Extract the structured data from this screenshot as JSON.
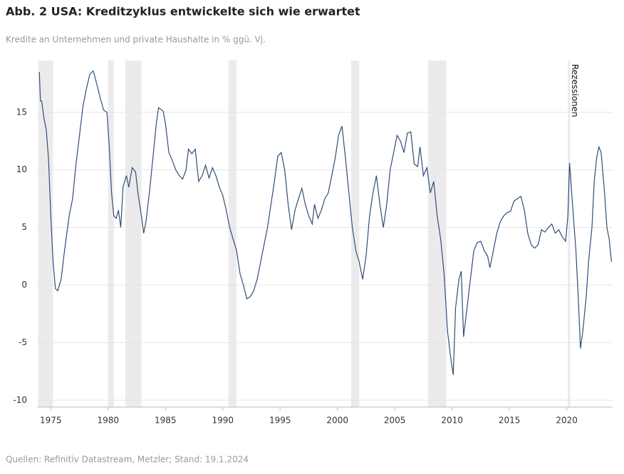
{
  "chart_data": {
    "type": "line",
    "title": "Abb. 2 USA: Kreditzyklus entwickelte sich wie erwartet",
    "subtitle": "Kredite an Unternehmen und private Haushalte in % ggü. Vj.",
    "source": "Quellen: Refinitiv Datastream, Metzler; Stand: 19.1.2024",
    "recession_label": "Rezessionen",
    "recession_color": "#ebebeb",
    "recessions": [
      [
        1973.9,
        1975.2
      ],
      [
        1980.0,
        1980.5
      ],
      [
        1981.5,
        1982.9
      ],
      [
        1990.5,
        1991.2
      ],
      [
        2001.2,
        2001.9
      ],
      [
        2007.9,
        2009.5
      ],
      [
        2020.1,
        2020.3
      ]
    ],
    "color": "#2f4f78",
    "x": [
      1974.0,
      1974.1,
      1974.2,
      1974.4,
      1974.6,
      1974.8,
      1975.0,
      1975.2,
      1975.4,
      1975.6,
      1975.9,
      1976.2,
      1976.6,
      1976.9,
      1977.2,
      1977.5,
      1977.8,
      1978.1,
      1978.4,
      1978.7,
      1979.0,
      1979.3,
      1979.6,
      1979.9,
      1980.1,
      1980.3,
      1980.5,
      1980.7,
      1980.9,
      1981.1,
      1981.3,
      1981.6,
      1981.8,
      1982.1,
      1982.4,
      1982.6,
      1982.9,
      1983.1,
      1983.3,
      1983.6,
      1983.9,
      1984.2,
      1984.4,
      1984.8,
      1985.0,
      1985.3,
      1985.6,
      1985.9,
      1986.2,
      1986.5,
      1986.8,
      1987.0,
      1987.3,
      1987.6,
      1987.9,
      1988.2,
      1988.5,
      1988.8,
      1989.1,
      1989.4,
      1989.7,
      1990.0,
      1990.3,
      1990.6,
      1990.9,
      1991.2,
      1991.5,
      1991.8,
      1992.1,
      1992.4,
      1992.7,
      1993.0,
      1993.3,
      1993.6,
      1993.9,
      1994.2,
      1994.5,
      1994.8,
      1995.1,
      1995.4,
      1995.7,
      1996.0,
      1996.3,
      1996.6,
      1996.9,
      1997.2,
      1997.5,
      1997.8,
      1998.0,
      1998.3,
      1998.6,
      1998.9,
      1999.2,
      1999.5,
      1999.8,
      2000.1,
      2000.4,
      2000.7,
      2001.0,
      2001.3,
      2001.6,
      2001.9,
      2002.2,
      2002.5,
      2002.8,
      2003.1,
      2003.4,
      2003.7,
      2004.0,
      2004.3,
      2004.6,
      2004.9,
      2005.2,
      2005.5,
      2005.8,
      2006.1,
      2006.4,
      2006.7,
      2007.0,
      2007.2,
      2007.5,
      2007.8,
      2008.1,
      2008.4,
      2008.7,
      2009.0,
      2009.3,
      2009.6,
      2009.9,
      2010.1,
      2010.3,
      2010.6,
      2010.8,
      2011.0,
      2011.3,
      2011.6,
      2011.9,
      2012.2,
      2012.5,
      2012.8,
      2013.1,
      2013.3,
      2013.6,
      2013.9,
      2014.2,
      2014.5,
      2014.8,
      2015.1,
      2015.4,
      2015.7,
      2016.0,
      2016.3,
      2016.6,
      2016.9,
      2017.2,
      2017.5,
      2017.8,
      2018.1,
      2018.4,
      2018.7,
      2019.0,
      2019.3,
      2019.6,
      2019.9,
      2020.1,
      2020.25,
      2020.5,
      2020.8,
      2021.0,
      2021.2,
      2021.4,
      2021.7,
      2021.9,
      2022.2,
      2022.4,
      2022.6,
      2022.8,
      2023.0,
      2023.3,
      2023.5,
      2023.7,
      2023.9
    ],
    "values": [
      18.5,
      16,
      16,
      14.5,
      13.5,
      11,
      6,
      2,
      -0.3,
      -0.5,
      0.5,
      3,
      6,
      7.5,
      10.5,
      13,
      15.5,
      17,
      18.3,
      18.6,
      17.5,
      16.3,
      15.2,
      15,
      12,
      8,
      6,
      5.8,
      6.5,
      5,
      8.5,
      9.5,
      8.5,
      10.2,
      9.8,
      8,
      6,
      4.5,
      5.5,
      8,
      11,
      14,
      15.4,
      15.1,
      14,
      11.5,
      10.8,
      10,
      9.5,
      9.2,
      10,
      11.8,
      11.4,
      11.8,
      9,
      9.5,
      10.4,
      9.3,
      10.2,
      9.5,
      8.5,
      7.8,
      6.5,
      5,
      4,
      3,
      1,
      0,
      -1.2,
      -1,
      -0.5,
      0.5,
      2,
      3.5,
      5,
      7,
      9,
      11.2,
      11.5,
      10,
      7,
      4.8,
      6.5,
      7.5,
      8.4,
      7,
      6,
      5.3,
      7,
      5.8,
      6.5,
      7.5,
      8,
      9.5,
      11,
      13,
      13.8,
      11,
      8,
      5,
      3,
      2,
      0.5,
      2.5,
      6,
      8,
      9.5,
      7,
      5,
      7,
      10,
      11.5,
      13,
      12.5,
      11.5,
      13.2,
      13.3,
      10.5,
      10.3,
      12,
      9.5,
      10.2,
      8,
      9,
      6,
      4,
      1,
      -4,
      -6.5,
      -7.8,
      -2,
      0.5,
      1.2,
      -4.5,
      -2,
      0.5,
      3,
      3.7,
      3.8,
      3,
      2.5,
      1.5,
      3,
      4.5,
      5.5,
      6,
      6.3,
      6.4,
      7.3,
      7.5,
      7.7,
      6.5,
      4.5,
      3.5,
      3.2,
      3.5,
      4.8,
      4.6,
      5,
      5.3,
      4.5,
      4.8,
      4.2,
      3.8,
      6,
      10.6,
      7,
      3,
      -1,
      -5.5,
      -4,
      -1,
      2,
      5,
      9,
      11,
      12,
      11.5,
      8,
      5,
      4,
      2
    ],
    "xlim": [
      1973.8,
      2024.0
    ],
    "xticks": [
      1975,
      1980,
      1985,
      1990,
      1995,
      2000,
      2005,
      2010,
      2015,
      2020
    ],
    "ylim": [
      -10.6,
      19.5
    ],
    "yticks": [
      -10,
      -5,
      0,
      5,
      10,
      15
    ],
    "grid": true
  }
}
